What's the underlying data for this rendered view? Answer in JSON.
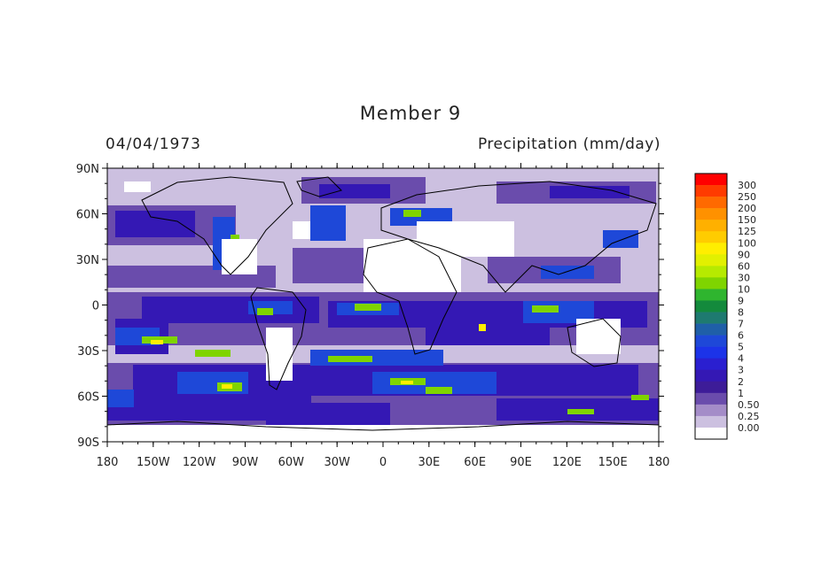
{
  "title": "Member 9",
  "date": "04/04/1973",
  "variable_label": "Precipitation (mm/day)",
  "map": {
    "lat_ticks": [
      "90N",
      "60N",
      "30N",
      "0",
      "30S",
      "60S",
      "90S"
    ],
    "lon_ticks": [
      "180",
      "150W",
      "120W",
      "90W",
      "60W",
      "30W",
      "0",
      "30E",
      "60E",
      "90E",
      "120E",
      "150E",
      "180"
    ],
    "colorbar": {
      "levels": [
        "300",
        "250",
        "200",
        "150",
        "125",
        "100",
        "90",
        "60",
        "30",
        "10",
        "9",
        "8",
        "7",
        "6",
        "5",
        "4",
        "3",
        "2",
        "1",
        "0.50",
        "0.25",
        "0.00"
      ],
      "colors": [
        "#ff0000",
        "#ff3b00",
        "#ff6a00",
        "#ff9100",
        "#ffb000",
        "#ffcc00",
        "#ffee00",
        "#e2f000",
        "#b6ea00",
        "#7fd400",
        "#2fb52f",
        "#138a3c",
        "#1e7a70",
        "#1f5fa8",
        "#1e48d8",
        "#1c33e8",
        "#2a1fd0",
        "#3418b4",
        "#3d1c98",
        "#6a4cac",
        "#a48cc8",
        "#ccc0e0",
        "#ffffff"
      ]
    }
  }
}
